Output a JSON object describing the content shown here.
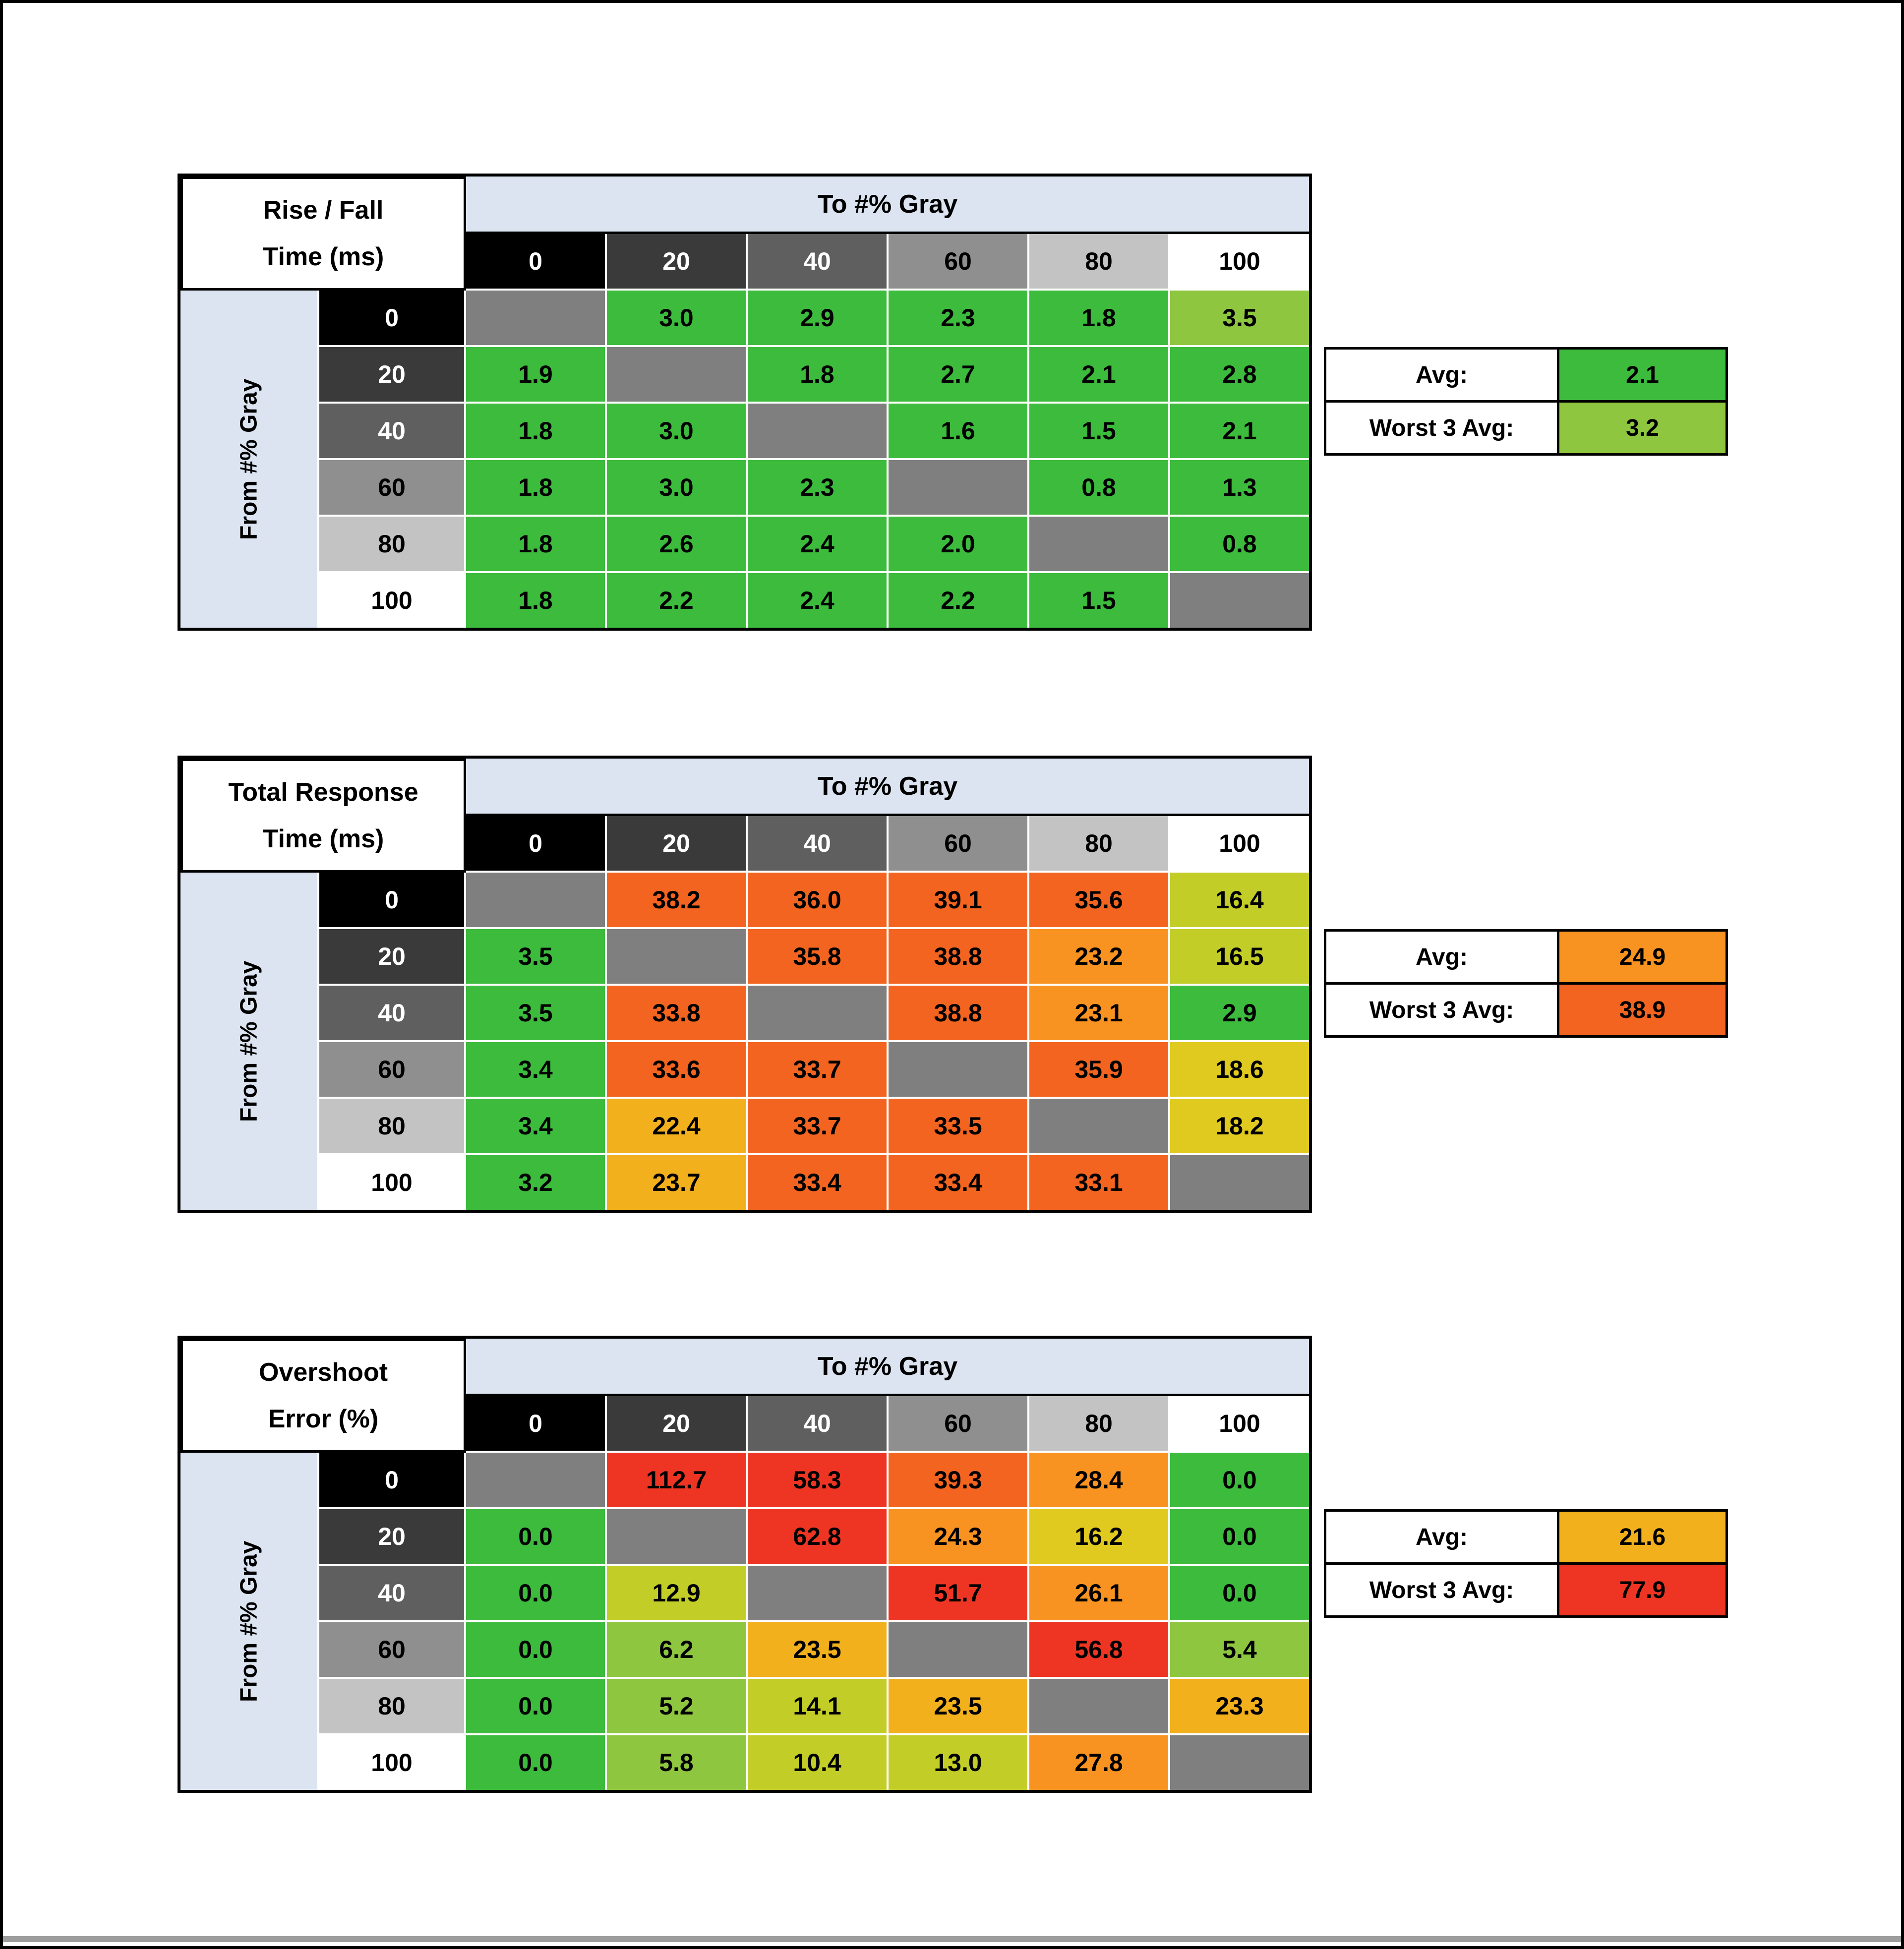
{
  "page": {
    "background": "#ffffff",
    "frame_color": "#000000",
    "bottom_strip_color": "#9d9d9d"
  },
  "palette": {
    "header_band_bg": "#dbe4f0",
    "diagonal_bg": "#7f7f7f",
    "grid_line": "#ffffff",
    "table_border": "#000000"
  },
  "heat_colors": {
    "G": "#3cbb3c",
    "LG": "#8ec63f",
    "YG": "#c3cd27",
    "Y": "#e0ca1f",
    "A": "#f2b01d",
    "O": "#f89321",
    "OR": "#f2641f",
    "R": "#ee3524"
  },
  "gray_levels": [
    {
      "label": "0",
      "bg": "#000000",
      "fg": "#ffffff"
    },
    {
      "label": "20",
      "bg": "#3a3a3a",
      "fg": "#ffffff"
    },
    {
      "label": "40",
      "bg": "#5f5f5f",
      "fg": "#ffffff"
    },
    {
      "label": "60",
      "bg": "#8f8f8f",
      "fg": "#000000"
    },
    {
      "label": "80",
      "bg": "#c3c3c3",
      "fg": "#000000"
    },
    {
      "label": "100",
      "bg": "#ffffff",
      "fg": "#000000"
    }
  ],
  "chart_data": [
    {
      "type": "heatmap",
      "title_line1": "Rise / Fall",
      "title_line2": "Time (ms)",
      "col_axis_label": "To #% Gray",
      "row_axis_label": "From #% Gray",
      "columns": [
        "0",
        "20",
        "40",
        "60",
        "80",
        "100"
      ],
      "rows": [
        "0",
        "20",
        "40",
        "60",
        "80",
        "100"
      ],
      "values": [
        [
          null,
          3.0,
          2.9,
          2.3,
          1.8,
          3.5
        ],
        [
          1.9,
          null,
          1.8,
          2.7,
          2.1,
          2.8
        ],
        [
          1.8,
          3.0,
          null,
          1.6,
          1.5,
          2.1
        ],
        [
          1.8,
          3.0,
          2.3,
          null,
          0.8,
          1.3
        ],
        [
          1.8,
          2.6,
          2.4,
          2.0,
          null,
          0.8
        ],
        [
          1.8,
          2.2,
          2.4,
          2.2,
          1.5,
          null
        ]
      ],
      "cell_colors": [
        [
          null,
          "G",
          "G",
          "G",
          "G",
          "LG"
        ],
        [
          "G",
          null,
          "G",
          "G",
          "G",
          "G"
        ],
        [
          "G",
          "G",
          null,
          "G",
          "G",
          "G"
        ],
        [
          "G",
          "G",
          "G",
          null,
          "G",
          "G"
        ],
        [
          "G",
          "G",
          "G",
          "G",
          null,
          "G"
        ],
        [
          "G",
          "G",
          "G",
          "G",
          "G",
          null
        ]
      ],
      "avg": {
        "label": "Avg:",
        "value": "2.1",
        "color_key": "G"
      },
      "worst": {
        "label": "Worst 3 Avg:",
        "value": "3.2",
        "color_key": "LG"
      }
    },
    {
      "type": "heatmap",
      "title_line1": "Total Response",
      "title_line2": "Time (ms)",
      "col_axis_label": "To #% Gray",
      "row_axis_label": "From #% Gray",
      "columns": [
        "0",
        "20",
        "40",
        "60",
        "80",
        "100"
      ],
      "rows": [
        "0",
        "20",
        "40",
        "60",
        "80",
        "100"
      ],
      "values": [
        [
          null,
          38.2,
          36.0,
          39.1,
          35.6,
          16.4
        ],
        [
          3.5,
          null,
          35.8,
          38.8,
          23.2,
          16.5
        ],
        [
          3.5,
          33.8,
          null,
          38.8,
          23.1,
          2.9
        ],
        [
          3.4,
          33.6,
          33.7,
          null,
          35.9,
          18.6
        ],
        [
          3.4,
          22.4,
          33.7,
          33.5,
          null,
          18.2
        ],
        [
          3.2,
          23.7,
          33.4,
          33.4,
          33.1,
          null
        ]
      ],
      "cell_colors": [
        [
          null,
          "OR",
          "OR",
          "OR",
          "OR",
          "YG"
        ],
        [
          "G",
          null,
          "OR",
          "OR",
          "O",
          "YG"
        ],
        [
          "G",
          "OR",
          null,
          "OR",
          "O",
          "G"
        ],
        [
          "G",
          "OR",
          "OR",
          null,
          "OR",
          "Y"
        ],
        [
          "G",
          "A",
          "OR",
          "OR",
          null,
          "Y"
        ],
        [
          "G",
          "A",
          "OR",
          "OR",
          "OR",
          null
        ]
      ],
      "avg": {
        "label": "Avg:",
        "value": "24.9",
        "color_key": "O"
      },
      "worst": {
        "label": "Worst 3 Avg:",
        "value": "38.9",
        "color_key": "OR"
      }
    },
    {
      "type": "heatmap",
      "title_line1": "Overshoot",
      "title_line2": "Error (%)",
      "col_axis_label": "To #% Gray",
      "row_axis_label": "From #% Gray",
      "columns": [
        "0",
        "20",
        "40",
        "60",
        "80",
        "100"
      ],
      "rows": [
        "0",
        "20",
        "40",
        "60",
        "80",
        "100"
      ],
      "values": [
        [
          null,
          112.7,
          58.3,
          39.3,
          28.4,
          0.0
        ],
        [
          0.0,
          null,
          62.8,
          24.3,
          16.2,
          0.0
        ],
        [
          0.0,
          12.9,
          null,
          51.7,
          26.1,
          0.0
        ],
        [
          0.0,
          6.2,
          23.5,
          null,
          56.8,
          5.4
        ],
        [
          0.0,
          5.2,
          14.1,
          23.5,
          null,
          23.3
        ],
        [
          0.0,
          5.8,
          10.4,
          13.0,
          27.8,
          null
        ]
      ],
      "cell_colors": [
        [
          null,
          "R",
          "R",
          "OR",
          "O",
          "G"
        ],
        [
          "G",
          null,
          "R",
          "O",
          "Y",
          "G"
        ],
        [
          "G",
          "YG",
          null,
          "R",
          "O",
          "G"
        ],
        [
          "G",
          "LG",
          "A",
          null,
          "R",
          "LG"
        ],
        [
          "G",
          "LG",
          "YG",
          "A",
          null,
          "A"
        ],
        [
          "G",
          "LG",
          "YG",
          "YG",
          "O",
          null
        ]
      ],
      "avg": {
        "label": "Avg:",
        "value": "21.6",
        "color_key": "A"
      },
      "worst": {
        "label": "Worst 3 Avg:",
        "value": "77.9",
        "color_key": "R"
      }
    }
  ]
}
